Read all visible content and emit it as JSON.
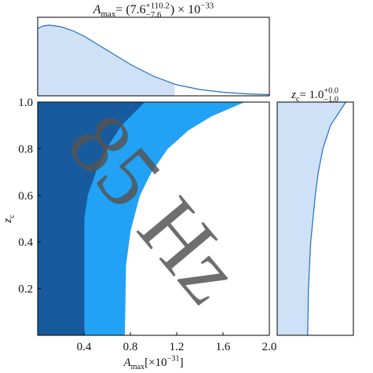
{
  "chart_data": [
    {
      "type": "area",
      "title": {
        "base": "A",
        "sub": "max",
        "mid": " = (7.6",
        "sup": "+110.2",
        "sub2": "−7.6",
        "end": ") × 10",
        "exp": "−33"
      },
      "x": [
        0,
        0.05,
        0.1,
        0.2,
        0.3,
        0.4,
        0.6,
        0.8,
        1.0,
        1.2,
        1.4,
        1.6,
        1.8,
        2.0
      ],
      "values": [
        0.86,
        0.89,
        0.9,
        0.88,
        0.83,
        0.76,
        0.58,
        0.4,
        0.25,
        0.14,
        0.08,
        0.045,
        0.025,
        0.015
      ],
      "shade_to": 1.18,
      "color": "#cfe1f7",
      "line_color": "#1f6fc2",
      "xlim": [
        0,
        2
      ],
      "ylim": [
        0,
        1
      ]
    },
    {
      "type": "contour",
      "xlabel": {
        "base": "A",
        "sub": "max",
        "mid": " [×10",
        "exp": "−31",
        "end": "]"
      },
      "ylabel": {
        "base": "z",
        "sub": "c"
      },
      "xlim": [
        0,
        2
      ],
      "ylim": [
        0,
        1
      ],
      "xticks": [
        0.4,
        0.8,
        1.2,
        1.6,
        {
          "value": 2,
          "label": "2.0"
        }
      ],
      "yticks": [
        0.2,
        0.4,
        0.6,
        0.8,
        {
          "value": 1,
          "label": "1.0"
        }
      ],
      "series": [
        {
          "color": "#22a2f5",
          "x": [
            0.75,
            0.76,
            0.8,
            0.88,
            0.98,
            1.12,
            1.3,
            1.5,
            1.78
          ],
          "values": [
            0,
            0.3,
            0.45,
            0.6,
            0.7,
            0.8,
            0.88,
            0.94,
            1.0
          ]
        },
        {
          "color": "#175a9e",
          "x": [
            0.4,
            0.4,
            0.43,
            0.5,
            0.59,
            0.72,
            0.92
          ],
          "values": [
            0,
            0.5,
            0.6,
            0.7,
            0.8,
            0.9,
            1.0
          ]
        }
      ],
      "annotation": "85 Hz",
      "annotation_color": "#555555"
    },
    {
      "type": "area_h",
      "title": {
        "base": "z",
        "sub": "c",
        "mid": " = 1.0",
        "sup": "+0.0",
        "sub2": "−1.0"
      },
      "y": [
        0,
        0.2,
        0.4,
        0.6,
        0.7,
        0.8,
        0.9,
        1.0
      ],
      "values": [
        0.4,
        0.41,
        0.44,
        0.5,
        0.54,
        0.6,
        0.7,
        0.9
      ],
      "color": "#cfe1f7",
      "line_color": "#1f6fc2",
      "xlim": [
        0,
        1
      ],
      "ylim": [
        0,
        1
      ]
    }
  ]
}
